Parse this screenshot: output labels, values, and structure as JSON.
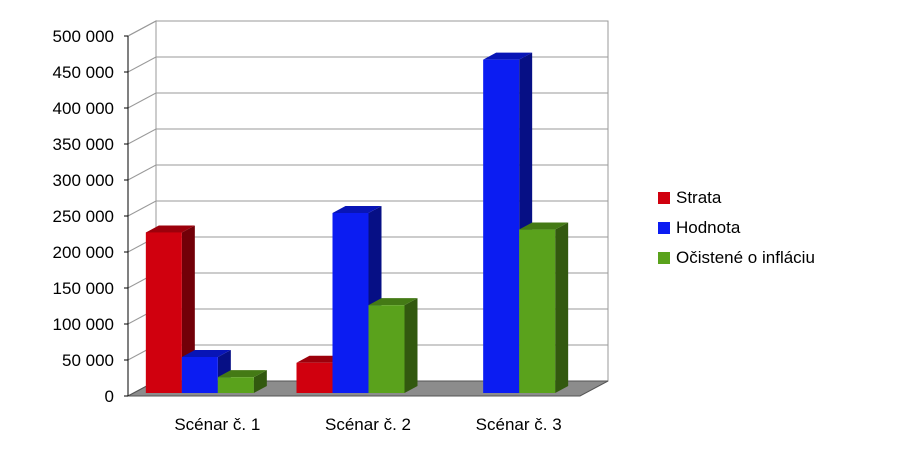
{
  "chart_data": {
    "type": "bar",
    "categories": [
      "Scénar č. 1",
      "Scénar č. 2",
      "Scénar č. 3"
    ],
    "series": [
      {
        "name": "Strata",
        "values": [
          223000,
          42000,
          0
        ],
        "color": "#d0000e"
      },
      {
        "name": "Hodnota",
        "values": [
          50000,
          250000,
          463000
        ],
        "color": "#0b1cf2"
      },
      {
        "name": "Očistené o infláciu",
        "values": [
          22000,
          122000,
          227000
        ],
        "color": "#5aa21c"
      }
    ],
    "yticks": [
      "0",
      "50 000",
      "100 000",
      "150 000",
      "200 000",
      "250 000",
      "300 000",
      "350 000",
      "400 000",
      "450 000",
      "500 000"
    ],
    "ylim": [
      0,
      500000
    ],
    "grid": true,
    "legend_position": "right",
    "three_d": true
  }
}
